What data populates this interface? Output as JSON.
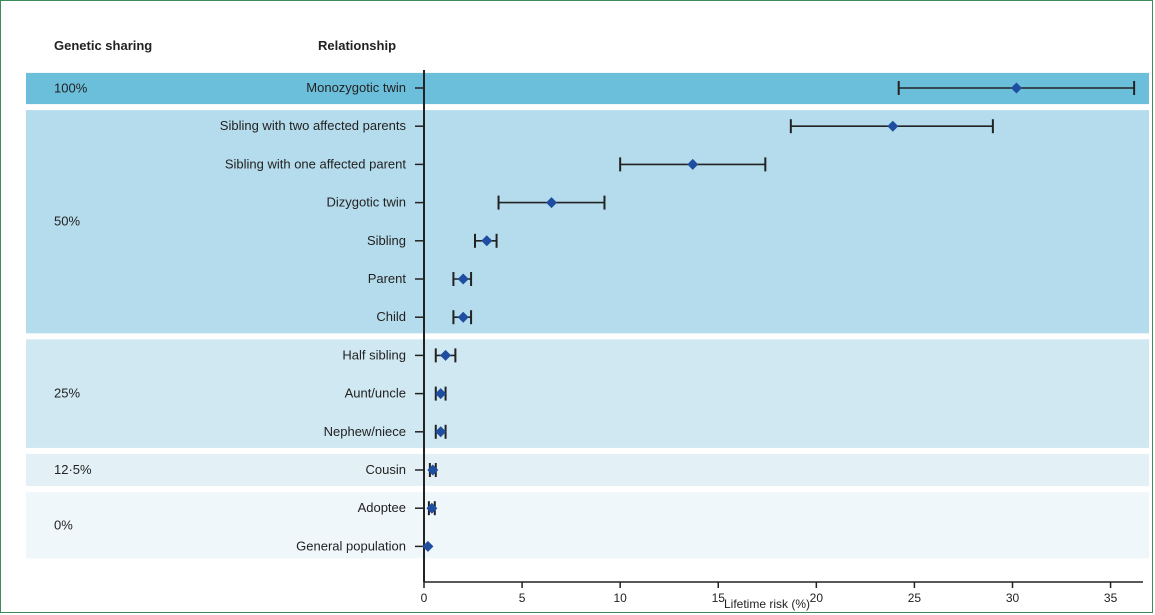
{
  "chart_data": {
    "type": "forest",
    "column_headers": {
      "left": "Genetic sharing",
      "right": "Relationship"
    },
    "xlabel": "Lifetime risk (%)",
    "xlim": [
      0,
      36.5
    ],
    "xticks": [
      0,
      5,
      10,
      15,
      20,
      25,
      30,
      35
    ],
    "groups": [
      {
        "label": "100%",
        "color": "#6cbfdb",
        "rows": [
          0
        ]
      },
      {
        "label": "50%",
        "color": "#b5dcec",
        "rows": [
          1,
          2,
          3,
          4,
          5,
          6
        ]
      },
      {
        "label": "25%",
        "color": "#d0e8f2",
        "rows": [
          7,
          8,
          9
        ]
      },
      {
        "label": "12·5%",
        "color": "#e3f1f7",
        "rows": [
          10
        ]
      },
      {
        "label": "0%",
        "color": "#f0f7fb",
        "rows": [
          11,
          12
        ]
      }
    ],
    "rows": [
      {
        "label": "Monozygotic twin",
        "estimate": 30.2,
        "lower": 24.2,
        "upper": 36.2
      },
      {
        "label": "Sibling with two affected parents",
        "estimate": 23.9,
        "lower": 18.7,
        "upper": 29.0
      },
      {
        "label": "Sibling with one affected parent",
        "estimate": 13.7,
        "lower": 10.0,
        "upper": 17.4
      },
      {
        "label": "Dizygotic twin",
        "estimate": 6.5,
        "lower": 3.8,
        "upper": 9.2
      },
      {
        "label": "Sibling",
        "estimate": 3.2,
        "lower": 2.6,
        "upper": 3.7
      },
      {
        "label": "Parent",
        "estimate": 2.0,
        "lower": 1.5,
        "upper": 2.4
      },
      {
        "label": "Child",
        "estimate": 2.0,
        "lower": 1.5,
        "upper": 2.4
      },
      {
        "label": "Half sibling",
        "estimate": 1.1,
        "lower": 0.6,
        "upper": 1.6
      },
      {
        "label": "Aunt/uncle",
        "estimate": 0.85,
        "lower": 0.6,
        "upper": 1.1
      },
      {
        "label": "Nephew/niece",
        "estimate": 0.85,
        "lower": 0.6,
        "upper": 1.1
      },
      {
        "label": "Cousin",
        "estimate": 0.45,
        "lower": 0.3,
        "upper": 0.6
      },
      {
        "label": "Adoptee",
        "estimate": 0.4,
        "lower": 0.25,
        "upper": 0.55
      },
      {
        "label": "General population",
        "estimate": 0.2,
        "lower": 0.2,
        "upper": 0.2
      }
    ],
    "colors": {
      "marker": "#1f4ea0",
      "errorbar": "#222222",
      "axis": "#222222",
      "frame": "#3a8c5c"
    }
  }
}
